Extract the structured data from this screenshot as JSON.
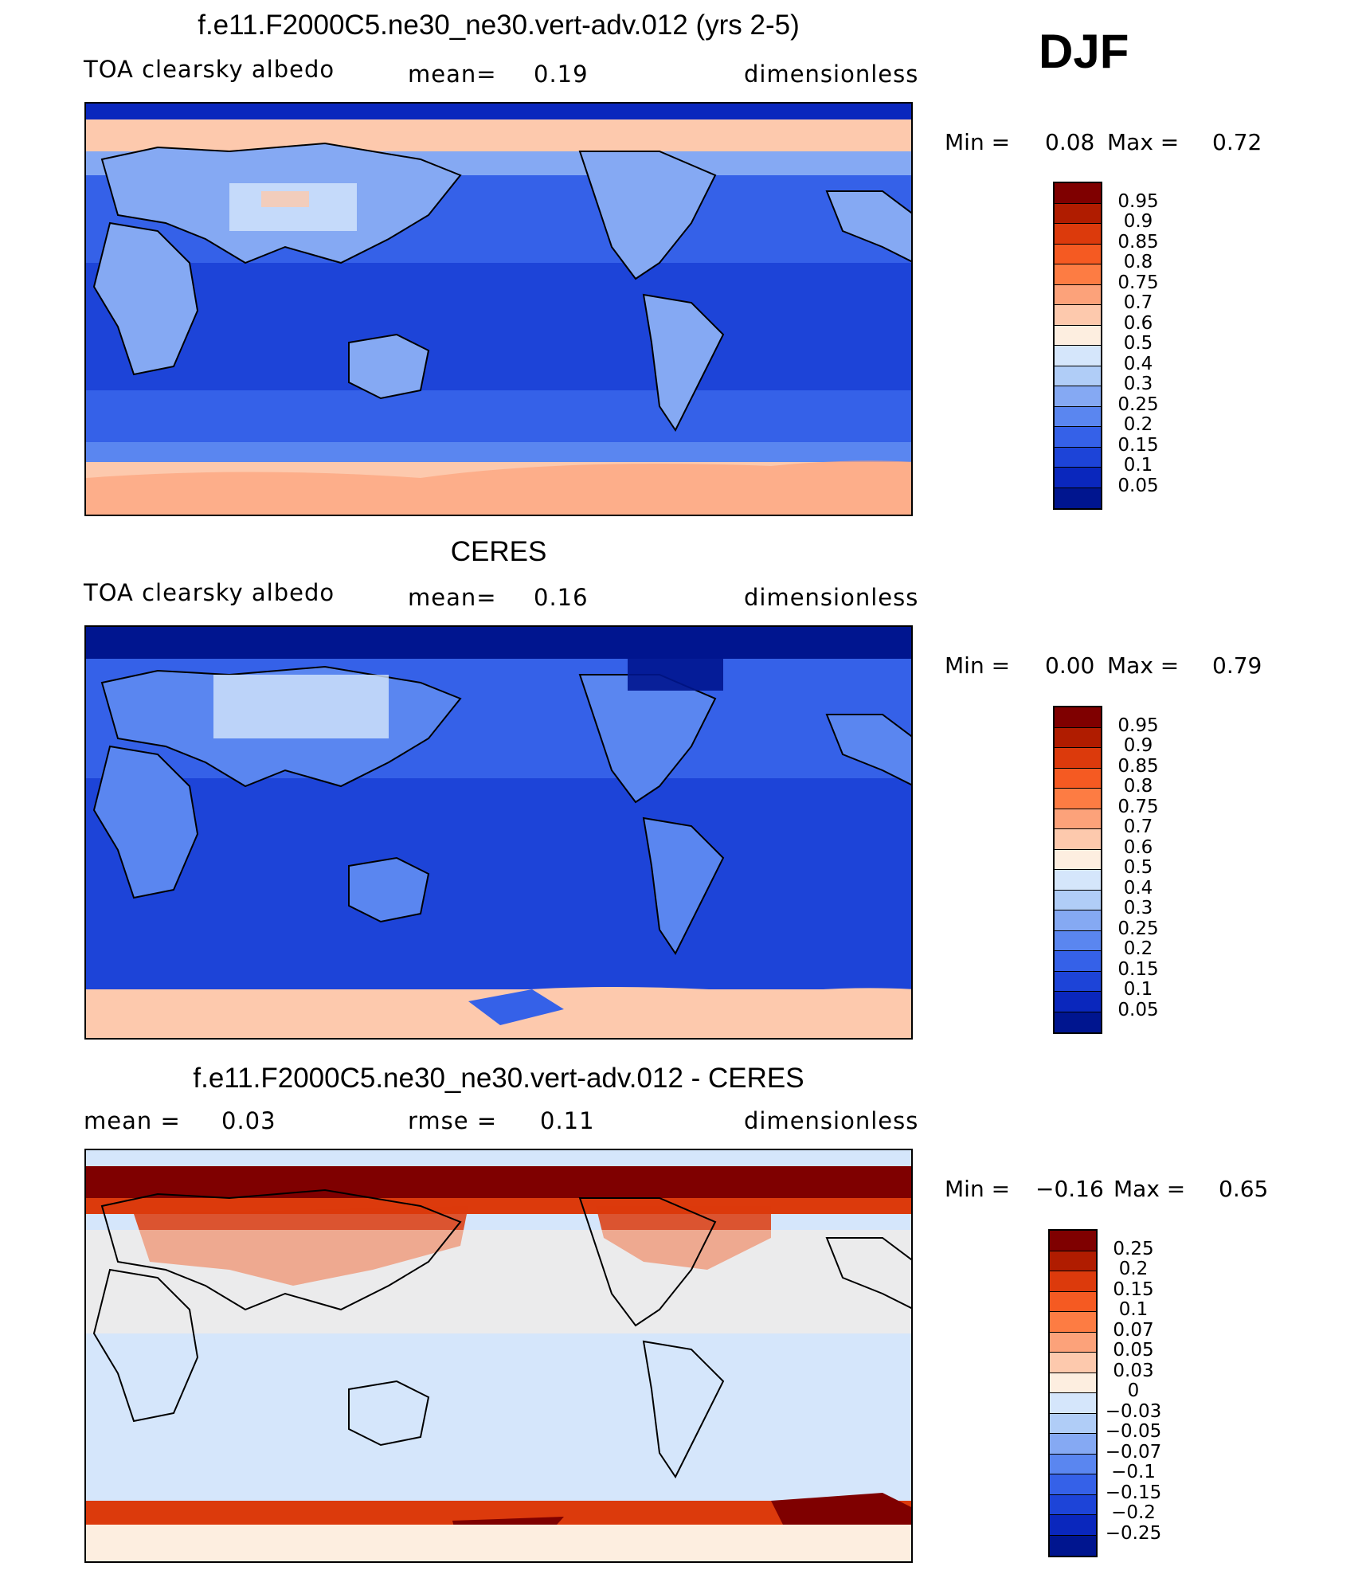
{
  "season": "DJF",
  "panels": [
    {
      "title": "f.e11.F2000C5.ne30_ne30.vert-adv.012 (yrs 2-5)",
      "left_label": "TOA clearsky albedo",
      "mean_label": "mean=",
      "mean_value": "0.19",
      "units": "dimensionless",
      "min_label": "Min =",
      "min_value": "0.08",
      "max_label": "Max =",
      "max_value": "0.72",
      "colorbar_labels": [
        "0.95",
        "0.9",
        "0.85",
        "0.8",
        "0.75",
        "0.7",
        "0.6",
        "0.5",
        "0.4",
        "0.3",
        "0.25",
        "0.2",
        "0.15",
        "0.1",
        "0.05"
      ]
    },
    {
      "title": "CERES",
      "left_label": "TOA clearsky albedo",
      "mean_label": "mean=",
      "mean_value": "0.16",
      "units": "dimensionless",
      "min_label": "Min =",
      "min_value": "0.00",
      "max_label": "Max =",
      "max_value": "0.79",
      "colorbar_labels": [
        "0.95",
        "0.9",
        "0.85",
        "0.8",
        "0.75",
        "0.7",
        "0.6",
        "0.5",
        "0.4",
        "0.3",
        "0.25",
        "0.2",
        "0.15",
        "0.1",
        "0.05"
      ]
    },
    {
      "title": "f.e11.F2000C5.ne30_ne30.vert-adv.012 - CERES",
      "left_label": "mean =",
      "left_value": "0.03",
      "mid_label": "rmse =",
      "mid_value": "0.11",
      "units": "dimensionless",
      "min_label": "Min =",
      "min_value": "−0.16",
      "max_label": "Max =",
      "max_value": "0.65",
      "colorbar_labels": [
        "0.25",
        "0.2",
        "0.15",
        "0.1",
        "0.07",
        "0.05",
        "0.03",
        "0",
        "−0.03",
        "−0.05",
        "−0.07",
        "−0.1",
        "−0.15",
        "−0.2",
        "−0.25"
      ]
    }
  ],
  "colors": {
    "abs_scale": [
      "#7f0000",
      "#b01c00",
      "#dc3a0c",
      "#f55a22",
      "#fd7c43",
      "#fca27a",
      "#fdc9ad",
      "#fdeee0",
      "#d5e6fb",
      "#b0cdf7",
      "#85a9f3",
      "#5a86f0",
      "#3561e8",
      "#1d44d8",
      "#0a27bd",
      "#00158f"
    ],
    "diff_scale": [
      "#7f0000",
      "#b01c00",
      "#dc3a0c",
      "#f55a22",
      "#fd7c43",
      "#fca27a",
      "#fdc9ad",
      "#fdeee0",
      "#d5e6fb",
      "#b0cdf7",
      "#85a9f3",
      "#5a86f0",
      "#3561e8",
      "#1d44d8",
      "#0a27bd",
      "#00158f"
    ]
  }
}
